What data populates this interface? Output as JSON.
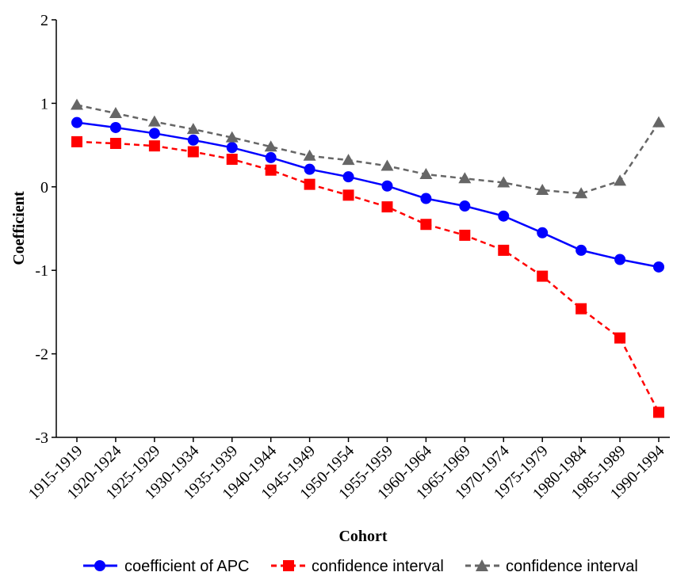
{
  "chart_data": {
    "type": "line",
    "title": "",
    "xlabel": "Cohort",
    "ylabel": "Coefficient",
    "ylim": [
      -3,
      2
    ],
    "yticks": [
      -3,
      -2,
      -1,
      0,
      1,
      2
    ],
    "grid": false,
    "legend_position": "bottom",
    "categories": [
      "1915-1919",
      "1920-1924",
      "1925-1929",
      "1930-1934",
      "1935-1939",
      "1940-1944",
      "1945-1949",
      "1950-1954",
      "1955-1959",
      "1960-1964",
      "1965-1969",
      "1970-1974",
      "1975-1979",
      "1980-1984",
      "1985-1989",
      "1990-1994"
    ],
    "series": [
      {
        "name": "coefficient of APC",
        "color": "#0000ff",
        "marker": "circle",
        "line_style": "solid",
        "values": [
          0.77,
          0.71,
          0.64,
          0.56,
          0.47,
          0.35,
          0.21,
          0.12,
          0.01,
          -0.14,
          -0.23,
          -0.35,
          -0.55,
          -0.76,
          -0.87,
          -0.96
        ]
      },
      {
        "name": "confidence interval",
        "color": "#ff0000",
        "marker": "square",
        "line_style": "dashed",
        "values": [
          0.54,
          0.52,
          0.49,
          0.42,
          0.33,
          0.2,
          0.03,
          -0.1,
          -0.24,
          -0.45,
          -0.58,
          -0.76,
          -1.07,
          -1.46,
          -1.81,
          -2.7
        ]
      },
      {
        "name": "confidence interval",
        "color": "#666666",
        "marker": "triangle",
        "line_style": "dashed",
        "values": [
          0.98,
          0.88,
          0.78,
          0.69,
          0.59,
          0.48,
          0.37,
          0.32,
          0.25,
          0.15,
          0.1,
          0.05,
          -0.04,
          -0.08,
          0.07,
          0.77
        ]
      }
    ]
  }
}
